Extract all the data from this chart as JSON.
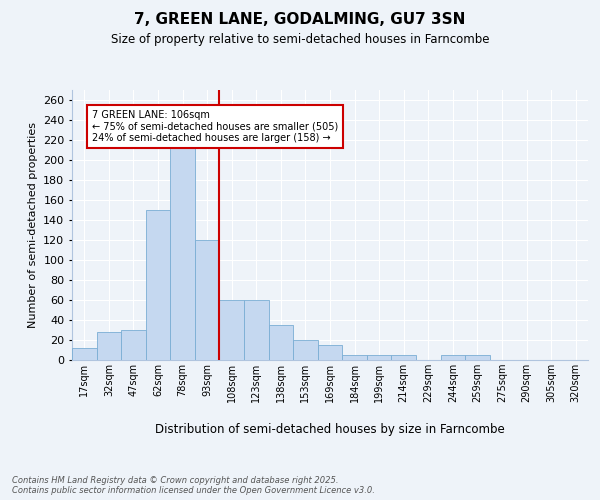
{
  "title": "7, GREEN LANE, GODALMING, GU7 3SN",
  "subtitle": "Size of property relative to semi-detached houses in Farncombe",
  "xlabel": "Distribution of semi-detached houses by size in Farncombe",
  "ylabel": "Number of semi-detached properties",
  "categories": [
    "17sqm",
    "32sqm",
    "47sqm",
    "62sqm",
    "78sqm",
    "93sqm",
    "108sqm",
    "123sqm",
    "138sqm",
    "153sqm",
    "169sqm",
    "184sqm",
    "199sqm",
    "214sqm",
    "229sqm",
    "244sqm",
    "259sqm",
    "275sqm",
    "290sqm",
    "305sqm",
    "320sqm"
  ],
  "values": [
    12,
    28,
    30,
    150,
    215,
    120,
    60,
    60,
    35,
    20,
    15,
    5,
    5,
    5,
    0,
    5,
    5,
    0,
    0,
    0,
    0
  ],
  "bar_color": "#c5d8f0",
  "bar_edge_color": "#7aadd4",
  "vline_color": "#cc0000",
  "annotation_text": "7 GREEN LANE: 106sqm\n← 75% of semi-detached houses are smaller (505)\n24% of semi-detached houses are larger (158) →",
  "annotation_box_color": "#cc0000",
  "ylim": [
    0,
    270
  ],
  "yticks": [
    0,
    20,
    40,
    60,
    80,
    100,
    120,
    140,
    160,
    180,
    200,
    220,
    240,
    260
  ],
  "background_color": "#eef3f9",
  "grid_color": "#ffffff",
  "footer": "Contains HM Land Registry data © Crown copyright and database right 2025.\nContains public sector information licensed under the Open Government Licence v3.0."
}
